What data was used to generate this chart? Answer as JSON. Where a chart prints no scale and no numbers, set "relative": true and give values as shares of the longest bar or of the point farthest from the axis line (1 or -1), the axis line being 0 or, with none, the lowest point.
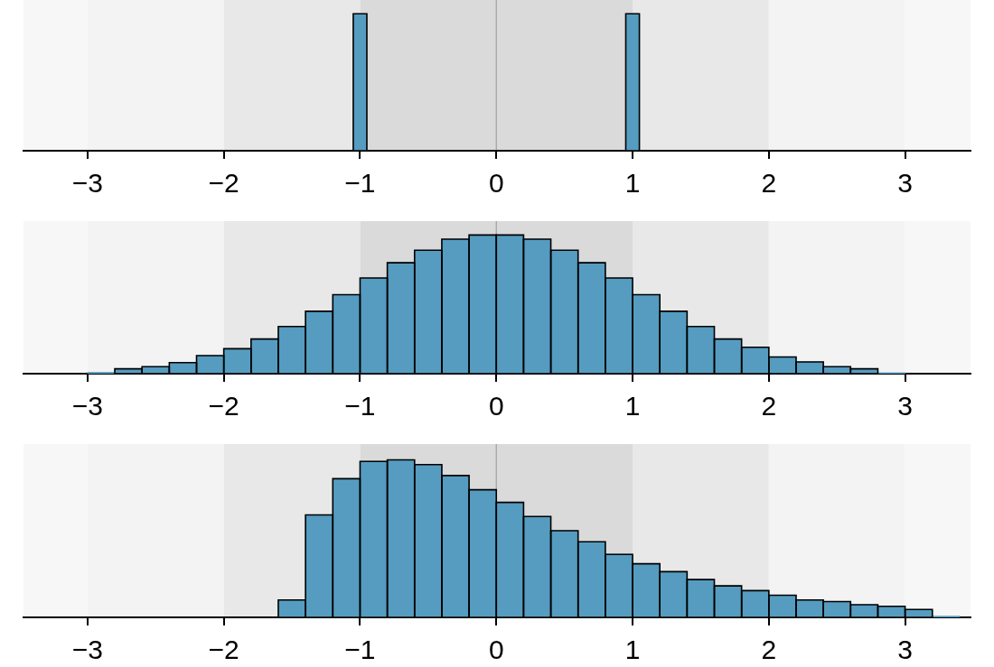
{
  "chart_data": [
    {
      "type": "bar",
      "relative": true,
      "x": [
        -1,
        1
      ],
      "values": [
        1,
        1
      ],
      "color": "#559cc0",
      "xlim": [
        -3.47,
        3.48
      ],
      "xticks": [
        {
          "value": -3,
          "label": "−3"
        },
        {
          "value": -2,
          "label": "−2"
        },
        {
          "value": -1,
          "label": "−1"
        },
        {
          "value": 0,
          "label": "0"
        },
        {
          "value": 1,
          "label": "1"
        },
        {
          "value": 2,
          "label": "2"
        },
        {
          "value": 3,
          "label": "3"
        }
      ],
      "bands": [
        {
          "axis": "x",
          "from": -3.47,
          "to": -3,
          "color": "#f7f7f7"
        },
        {
          "axis": "x",
          "from": -3,
          "to": -2,
          "color": "#f3f3f3"
        },
        {
          "axis": "x",
          "from": -2,
          "to": -1,
          "color": "#e8e8e8"
        },
        {
          "axis": "x",
          "from": -1,
          "to": 1,
          "color": "#dadada"
        },
        {
          "axis": "x",
          "from": 1,
          "to": 2,
          "color": "#e8e8e8"
        },
        {
          "axis": "x",
          "from": 2,
          "to": 3,
          "color": "#f3f3f3"
        },
        {
          "axis": "x",
          "from": 3,
          "to": 3.48,
          "color": "#f7f7f7"
        }
      ],
      "ref_lines": [
        {
          "axis": "x",
          "value": 0,
          "color": "#a0a0a0"
        }
      ]
    },
    {
      "type": "bar",
      "relative": true,
      "x": [
        -2.9,
        -2.7,
        -2.5,
        -2.3,
        -2.1,
        -1.9,
        -1.7,
        -1.5,
        -1.3,
        -1.1,
        -0.9,
        -0.7,
        -0.5,
        -0.3,
        -0.1,
        0.1,
        0.3,
        0.5,
        0.7,
        0.9,
        1.1,
        1.3,
        1.5,
        1.7,
        1.9,
        2.1,
        2.3,
        2.5,
        2.7,
        2.9
      ],
      "values": [
        0.01,
        0.035,
        0.05,
        0.08,
        0.13,
        0.18,
        0.25,
        0.34,
        0.45,
        0.57,
        0.69,
        0.8,
        0.89,
        0.97,
        1,
        1,
        0.97,
        0.89,
        0.8,
        0.69,
        0.57,
        0.45,
        0.34,
        0.25,
        0.19,
        0.12,
        0.085,
        0.05,
        0.035,
        0.007
      ],
      "color": "#559cc0",
      "xlim": [
        -3.47,
        3.48
      ],
      "xticks": [
        {
          "value": -3,
          "label": "−3"
        },
        {
          "value": -2,
          "label": "−2"
        },
        {
          "value": -1,
          "label": "−1"
        },
        {
          "value": 0,
          "label": "0"
        },
        {
          "value": 1,
          "label": "1"
        },
        {
          "value": 2,
          "label": "2"
        },
        {
          "value": 3,
          "label": "3"
        }
      ],
      "bands": [
        {
          "axis": "x",
          "from": -3.47,
          "to": -3,
          "color": "#f7f7f7"
        },
        {
          "axis": "x",
          "from": -3,
          "to": -2,
          "color": "#f3f3f3"
        },
        {
          "axis": "x",
          "from": -2,
          "to": -1,
          "color": "#e8e8e8"
        },
        {
          "axis": "x",
          "from": -1,
          "to": 1,
          "color": "#dadada"
        },
        {
          "axis": "x",
          "from": 1,
          "to": 2,
          "color": "#e8e8e8"
        },
        {
          "axis": "x",
          "from": 2,
          "to": 3,
          "color": "#f3f3f3"
        },
        {
          "axis": "x",
          "from": 3,
          "to": 3.48,
          "color": "#f7f7f7"
        }
      ],
      "ref_lines": [
        {
          "axis": "x",
          "value": 0,
          "color": "#a0a0a0"
        }
      ]
    },
    {
      "type": "bar",
      "relative": true,
      "x": [
        -1.5,
        -1.3,
        -1.1,
        -0.9,
        -0.7,
        -0.5,
        -0.3,
        -0.1,
        0.1,
        0.3,
        0.5,
        0.7,
        0.9,
        1.1,
        1.3,
        1.5,
        1.7,
        1.9,
        2.1,
        2.3,
        2.5,
        2.7,
        2.9,
        3.1,
        3.3
      ],
      "values": [
        0.11,
        0.65,
        0.88,
        0.99,
        1,
        0.97,
        0.9,
        0.81,
        0.73,
        0.64,
        0.55,
        0.48,
        0.4,
        0.34,
        0.29,
        0.24,
        0.2,
        0.17,
        0.14,
        0.11,
        0.1,
        0.08,
        0.07,
        0.05,
        0.008
      ],
      "color": "#559cc0",
      "xlim": [
        -3.47,
        3.48
      ],
      "xticks": [
        {
          "value": -3,
          "label": "−3"
        },
        {
          "value": -2,
          "label": "−2"
        },
        {
          "value": -1,
          "label": "−1"
        },
        {
          "value": 0,
          "label": "0"
        },
        {
          "value": 1,
          "label": "1"
        },
        {
          "value": 2,
          "label": "2"
        },
        {
          "value": 3,
          "label": "3"
        }
      ],
      "bands": [
        {
          "axis": "x",
          "from": -3.47,
          "to": -3,
          "color": "#f7f7f7"
        },
        {
          "axis": "x",
          "from": -3,
          "to": -2,
          "color": "#f3f3f3"
        },
        {
          "axis": "x",
          "from": -2,
          "to": -1,
          "color": "#e8e8e8"
        },
        {
          "axis": "x",
          "from": -1,
          "to": 1,
          "color": "#dadada"
        },
        {
          "axis": "x",
          "from": 1,
          "to": 2,
          "color": "#e8e8e8"
        },
        {
          "axis": "x",
          "from": 2,
          "to": 3,
          "color": "#f3f3f3"
        },
        {
          "axis": "x",
          "from": 3,
          "to": 3.48,
          "color": "#f7f7f7"
        }
      ],
      "ref_lines": [
        {
          "axis": "x",
          "value": 0,
          "color": "#a0a0a0"
        }
      ]
    }
  ]
}
